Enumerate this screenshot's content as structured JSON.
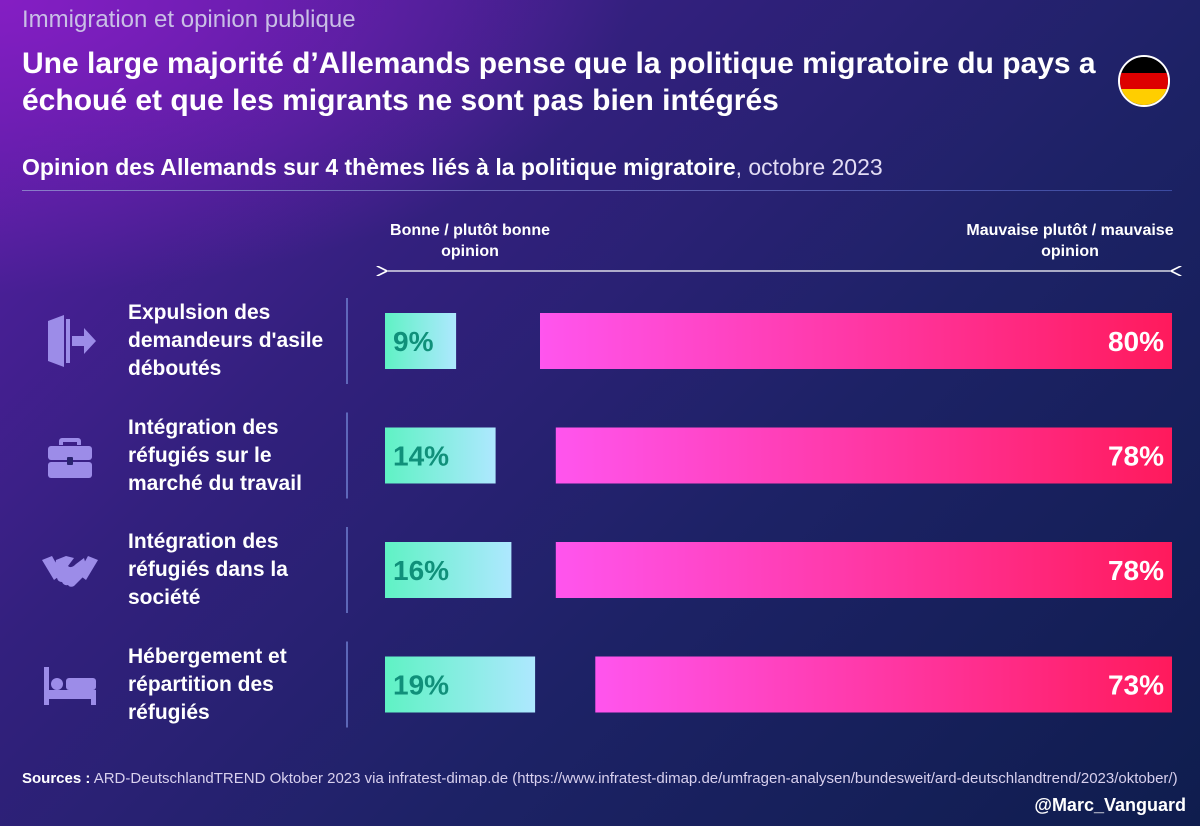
{
  "header": {
    "kicker": "Immigration et opinion publique",
    "title": "Une large majorité d’Allemands pense que la politique migratoire du pays a échoué et que les migrants ne sont pas bien intégrés",
    "subtitle_strong": "Opinion des Allemands sur 4 thèmes liés à la politique migratoire",
    "subtitle_date": ", octobre 2023"
  },
  "colors": {
    "good_bar_start": "#5ff2c4",
    "good_bar_end": "#aee8ff",
    "good_text": "#10907a",
    "bad_bar_start": "#ff55ee",
    "bad_bar_end": "#ff1a5c",
    "icon": "#9c8ce8",
    "flag": [
      "#000000",
      "#dd0000",
      "#ffce00"
    ]
  },
  "chart_data": {
    "type": "bar",
    "orientation": "horizontal-diverging",
    "categories": [
      "Expulsion des demandeurs d'asile déboutés",
      "Intégration des réfugiés sur le marché du travail",
      "Intégration des réfugiés dans la société",
      "Hébergement et répartition des réfugiés"
    ],
    "icons": [
      "exit-door-icon",
      "briefcase-icon",
      "handshake-icon",
      "bed-icon"
    ],
    "series": [
      {
        "name": "Bonne / plutôt bonne opinion",
        "values": [
          9,
          14,
          16,
          19
        ],
        "labels": [
          "9%",
          "14%",
          "16%",
          "19%"
        ]
      },
      {
        "name": "Mauvaise plutôt / mauvaise opinion",
        "values": [
          80,
          78,
          78,
          73
        ],
        "labels": [
          "80%",
          "78%",
          "78%",
          "73%"
        ]
      }
    ],
    "unit": "%",
    "legend_left": "Bonne / plutôt bonne opinion",
    "legend_right": "Mauvaise plutôt / mauvaise opinion"
  },
  "footer": {
    "sources_label": "Sources :",
    "sources_text": " ARD-DeutschlandTREND Oktober 2023 via infratest-dimap.de (https://www.infratest-dimap.de/umfragen-analysen/bundesweit/ard-deutschlandtrend/2023/oktober/)",
    "handle": "@Marc_Vanguard"
  }
}
